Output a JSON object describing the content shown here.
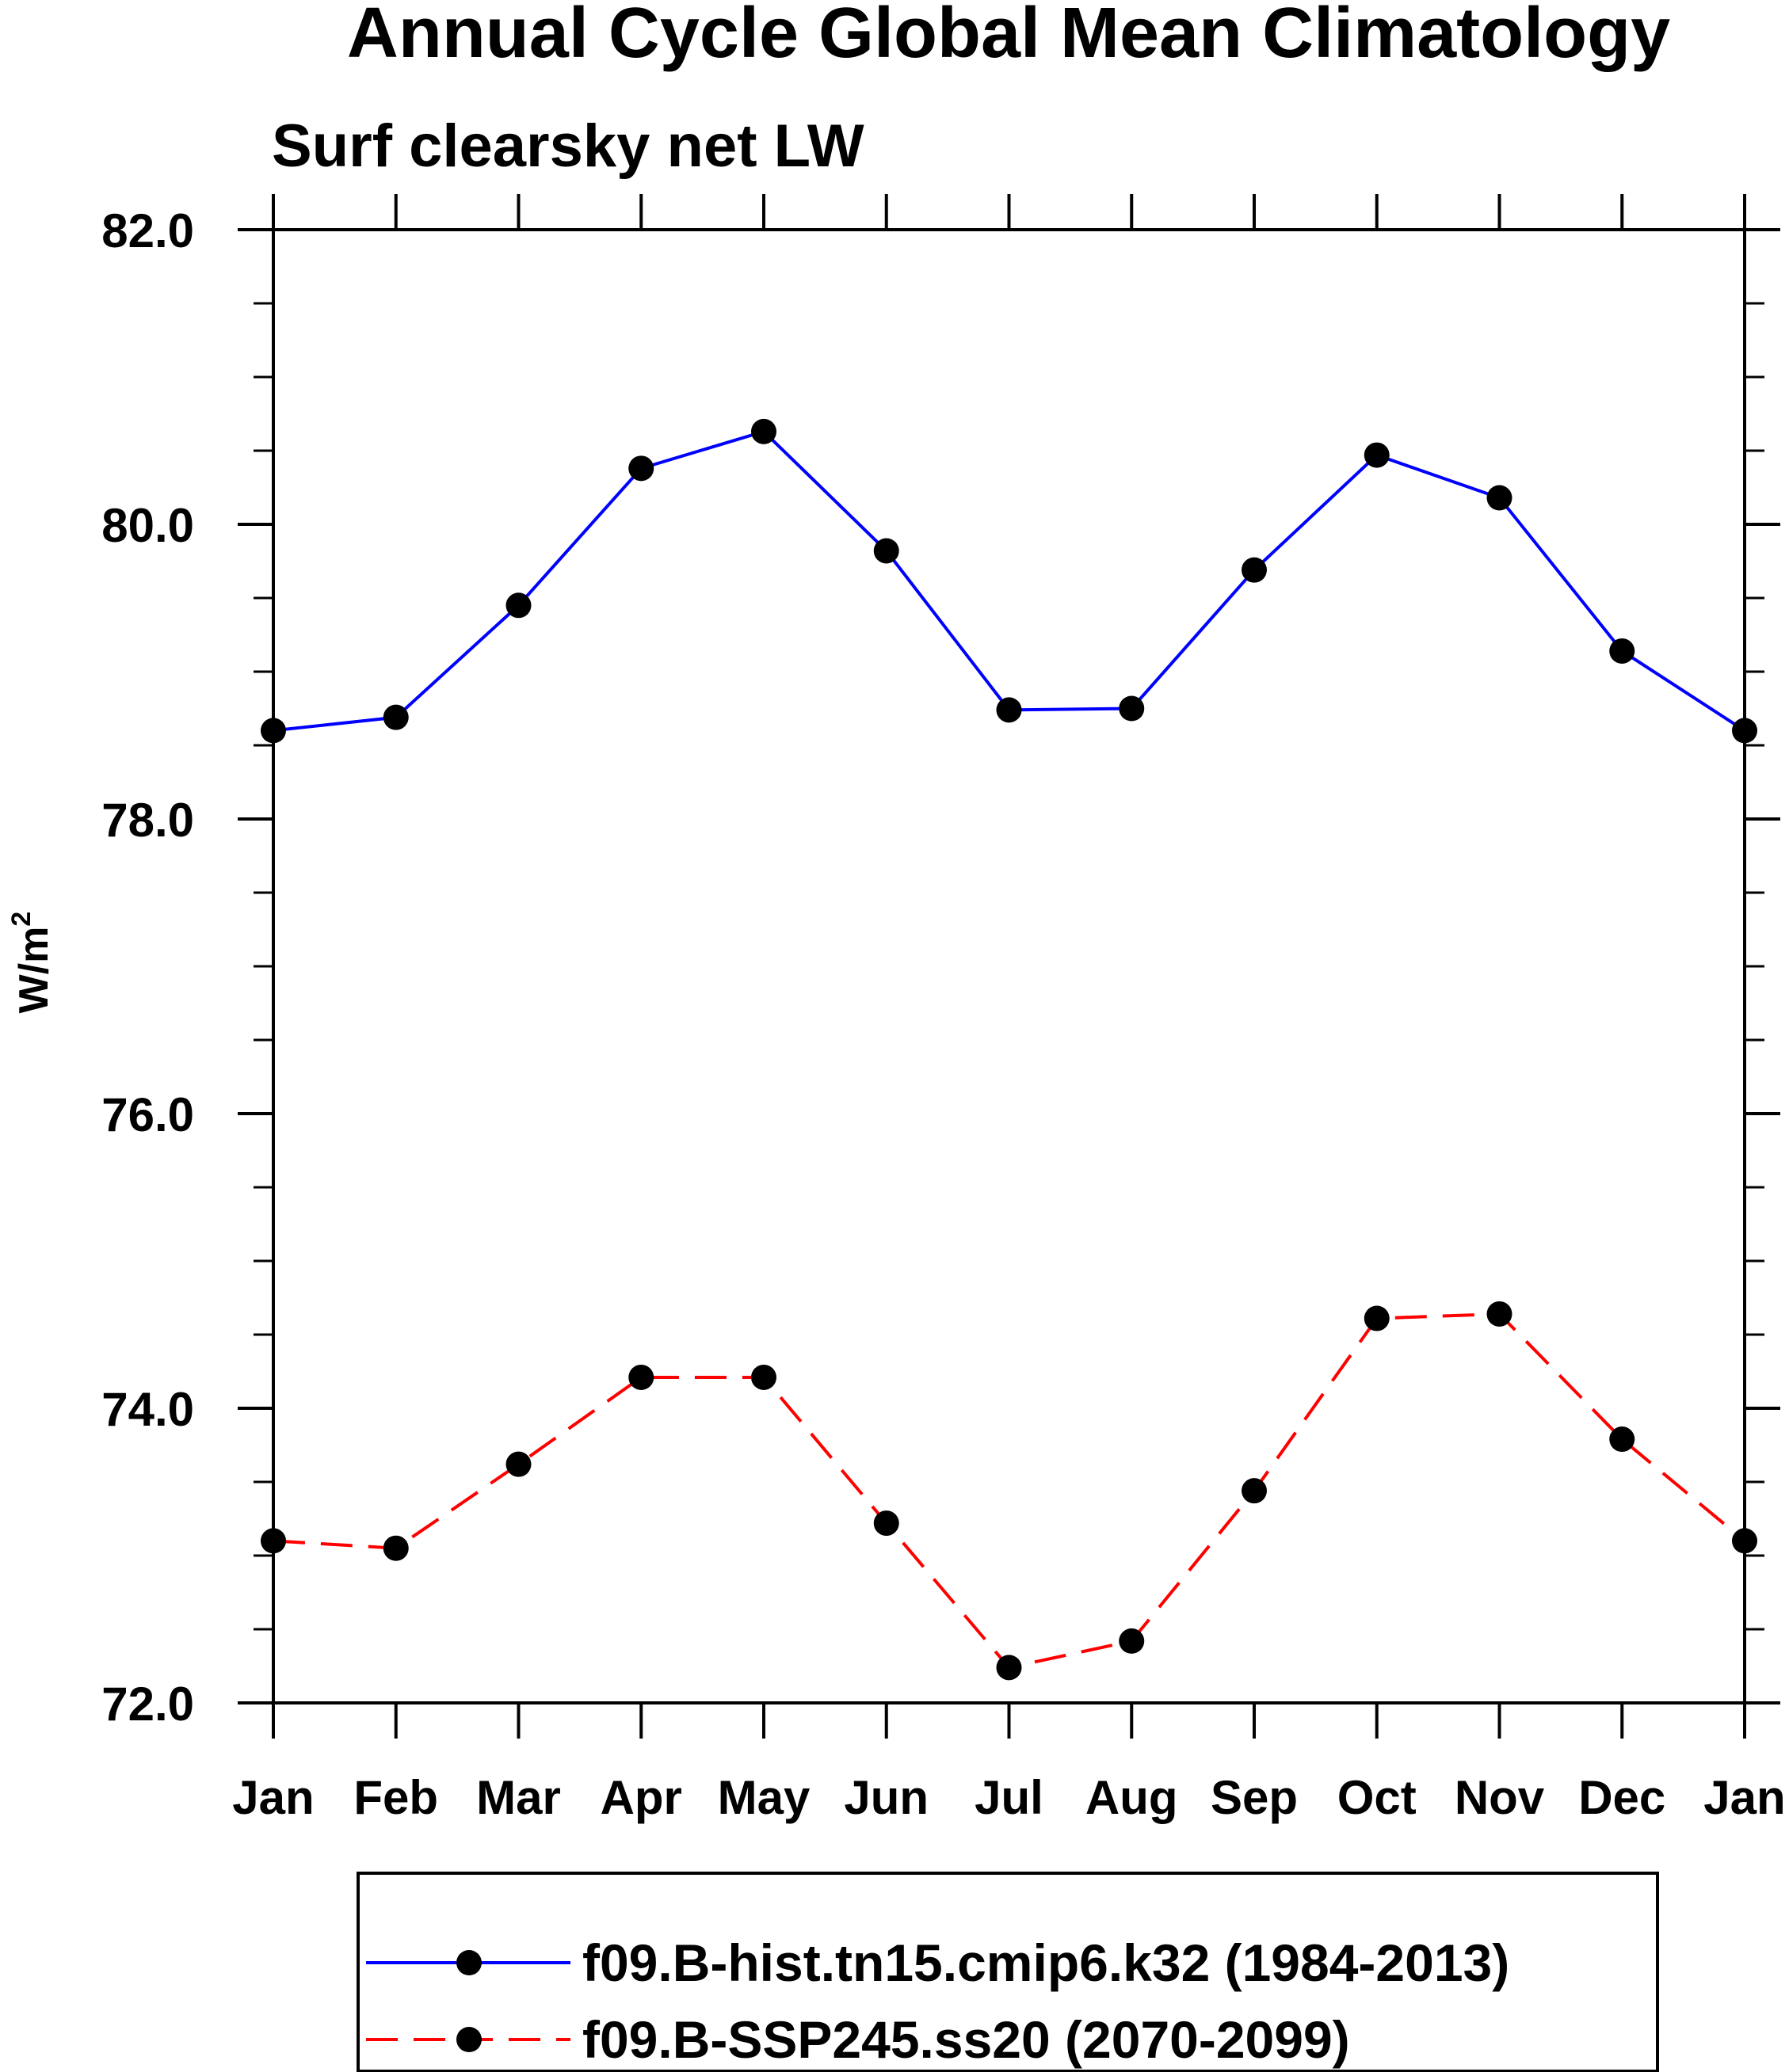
{
  "chart_data": {
    "type": "line",
    "title": "Annual Cycle Global Mean Climatology",
    "subtitle": "Surf clearsky net LW",
    "ylabel": "W/m",
    "ylabel_superscript": "2",
    "xlabel": "",
    "categories": [
      "Jan",
      "Feb",
      "Mar",
      "Apr",
      "May",
      "Jun",
      "Jul",
      "Aug",
      "Sep",
      "Oct",
      "Nov",
      "Dec",
      "Jan"
    ],
    "ylim": [
      72.0,
      82.0
    ],
    "yticks": [
      "72.0",
      "74.0",
      "76.0",
      "78.0",
      "80.0",
      "82.0"
    ],
    "ytick_values": [
      72,
      74,
      76,
      78,
      80,
      82
    ],
    "y_minor_step": 0.5,
    "series": [
      {
        "name": "f09.B-hist.tn15.cmip6.k32 (1984-2013)",
        "color": "#0000ff",
        "dash": "solid",
        "values": [
          78.6,
          78.69,
          79.45,
          80.38,
          80.63,
          79.82,
          78.74,
          78.75,
          79.69,
          80.47,
          80.18,
          79.14,
          78.6
        ]
      },
      {
        "name": "f09.B-SSP245.ss20 (2070-2099)",
        "color": "#ff0000",
        "dash": "dashed",
        "values": [
          73.1,
          73.05,
          73.62,
          74.21,
          74.21,
          73.22,
          72.24,
          72.42,
          73.44,
          74.61,
          74.64,
          73.79,
          73.1
        ]
      }
    ],
    "marker_color": "#000000",
    "legend_position": "bottom-center"
  }
}
